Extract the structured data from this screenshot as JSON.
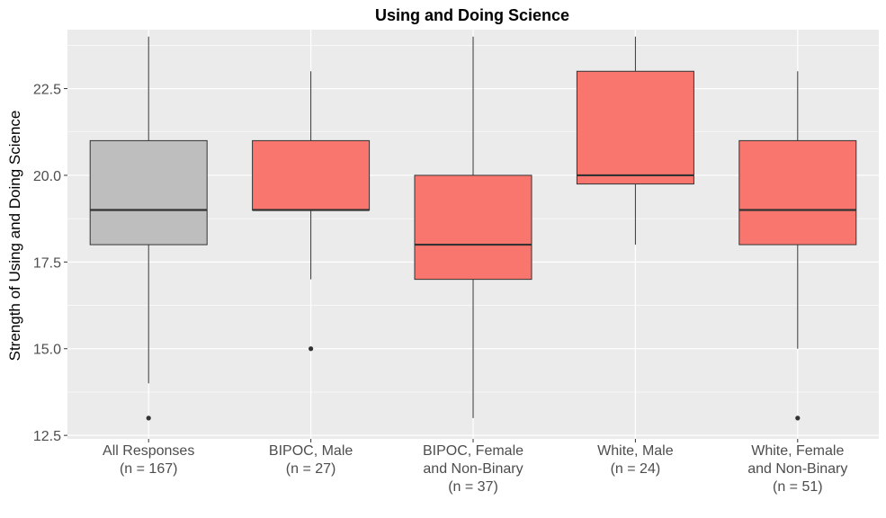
{
  "chart_data": {
    "type": "boxplot",
    "title": "Using and Doing Science",
    "xlabel": "",
    "ylabel": "Strength of Using and Doing Science",
    "ylim": [
      12.4,
      24.2
    ],
    "yticks": [
      12.5,
      15.0,
      17.5,
      20.0,
      22.5
    ],
    "ytick_labels": [
      "12.5",
      "15.0",
      "17.5",
      "20.0",
      "22.5"
    ],
    "grid": true,
    "legend": "none",
    "colors": {
      "panel": "#ebebeb",
      "grid": "#ffffff",
      "all": "#bebebe",
      "group": "#f8766d",
      "stroke": "#333333"
    },
    "categories": [
      {
        "lines": [
          "All Responses",
          "(n = 167)"
        ],
        "min": 14,
        "q1": 18,
        "median": 19,
        "q3": 21,
        "max": 24,
        "outliers": [
          13
        ],
        "fill": "#bebebe"
      },
      {
        "lines": [
          "BIPOC, Male",
          "(n = 27)"
        ],
        "min": 17,
        "q1": 19,
        "median": 19,
        "q3": 21,
        "max": 23,
        "outliers": [
          15
        ],
        "fill": "#f8766d"
      },
      {
        "lines": [
          "BIPOC, Female",
          "and Non-Binary",
          "(n = 37)"
        ],
        "min": 13,
        "q1": 17,
        "median": 18,
        "q3": 20,
        "max": 24,
        "outliers": [],
        "fill": "#f8766d"
      },
      {
        "lines": [
          "White, Male",
          "(n = 24)"
        ],
        "min": 18,
        "q1": 19.75,
        "median": 20,
        "q3": 23,
        "max": 24,
        "outliers": [],
        "fill": "#f8766d"
      },
      {
        "lines": [
          "White, Female",
          "and Non-Binary",
          "(n = 51)"
        ],
        "min": 15,
        "q1": 18,
        "median": 19,
        "q3": 21,
        "max": 23,
        "outliers": [
          13
        ],
        "fill": "#f8766d"
      }
    ]
  }
}
